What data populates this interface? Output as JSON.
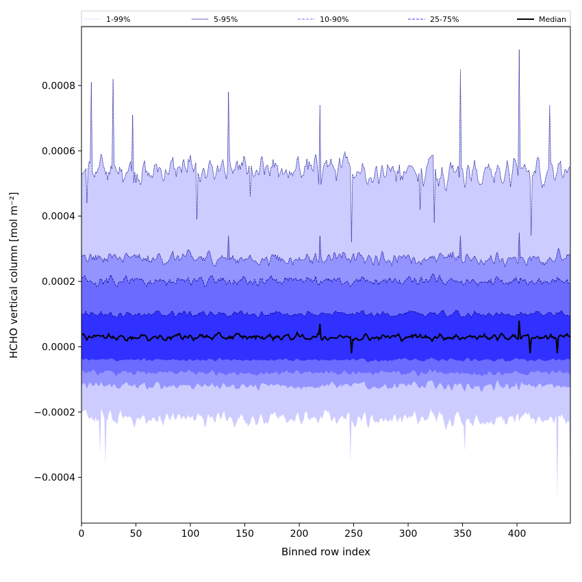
{
  "chart_data": {
    "type": "area",
    "xlabel": "Binned row index",
    "ylabel": "HCHO vertical column [mol m⁻²]",
    "xlim": [
      0,
      449
    ],
    "ylim": [
      -0.00054,
      0.00098
    ],
    "x_ticks": [
      0,
      50,
      100,
      150,
      200,
      250,
      300,
      350,
      400
    ],
    "x_tick_labels": [
      "0",
      "50",
      "100",
      "150",
      "200",
      "250",
      "300",
      "350",
      "400"
    ],
    "y_ticks": [
      -0.0004,
      -0.0002,
      0.0,
      0.0002,
      0.0004,
      0.0006,
      0.0008
    ],
    "y_tick_labels": [
      "−0.0004",
      "−0.0002",
      "0.0000",
      "0.0002",
      "0.0004",
      "0.0006",
      "0.0008"
    ],
    "grid": false,
    "legend_placement": "top (above plot area)",
    "legend": [
      {
        "label": "1-99%",
        "style": "dotted",
        "color": "#ccccff"
      },
      {
        "label": "5-95%",
        "style": "dotted",
        "color": "#00008b"
      },
      {
        "label": "10-90%",
        "style": "dashed",
        "color": "#6b6bff"
      },
      {
        "label": "25-75%",
        "style": "dashed",
        "color": "#3838ff"
      },
      {
        "label": "Median",
        "style": "solid",
        "color": "#000000"
      }
    ],
    "n_points": 450,
    "bands": [
      {
        "name": "1-99%",
        "fill": "#ccccff",
        "upper_line": "#00008b",
        "upper_mean": 0.00054,
        "lower_mean": -0.00022,
        "upper_spikes": [
          [
            9,
            0.00081
          ],
          [
            29,
            0.00082
          ],
          [
            47,
            0.00071
          ],
          [
            135,
            0.00078
          ],
          [
            219,
            0.00074
          ],
          [
            348,
            0.00085
          ],
          [
            402,
            0.00091
          ],
          [
            430,
            0.00074
          ]
        ],
        "upper_dips": [
          [
            5,
            0.00044
          ],
          [
            106,
            0.00039
          ],
          [
            155,
            0.00046
          ],
          [
            248,
            0.00032
          ],
          [
            311,
            0.00042
          ],
          [
            324,
            0.00038
          ],
          [
            413,
            0.00034
          ]
        ],
        "lower_dips": [
          [
            17,
            -0.00033
          ],
          [
            22,
            -0.00036
          ],
          [
            247,
            -0.00035
          ],
          [
            352,
            -0.00032
          ],
          [
            437,
            -0.00047
          ],
          [
            449,
            -0.0004
          ]
        ]
      },
      {
        "name": "5-95%",
        "fill": "#9494ff",
        "upper_line": "#00008b",
        "upper_mean": 0.00027,
        "lower_mean": -0.00012,
        "upper_spikes": [
          [
            135,
            0.00034
          ],
          [
            219,
            0.00034
          ],
          [
            348,
            0.00034
          ],
          [
            402,
            0.00035
          ]
        ]
      },
      {
        "name": "10-90%",
        "fill": "#6b6bff",
        "upper_line": "#00008b",
        "upper_mean": 0.0002,
        "lower_mean": -8e-05
      },
      {
        "name": "25-75%",
        "fill": "#3030ff",
        "upper_line": "#00008b",
        "upper_mean": 0.0001,
        "lower_mean": -4e-05
      }
    ],
    "median": {
      "name": "Median",
      "mean": 3e-05,
      "color": "#000000",
      "spikes": [
        [
          219,
          7e-05
        ],
        [
          248,
          8e-05
        ],
        [
          402,
          8e-05
        ]
      ],
      "dips": [
        [
          248,
          -2e-05
        ],
        [
          412,
          -2e-05
        ],
        [
          437,
          -2e-05
        ]
      ]
    }
  },
  "colors": {
    "axis": "#000000",
    "legend_border": "#cccccc"
  }
}
